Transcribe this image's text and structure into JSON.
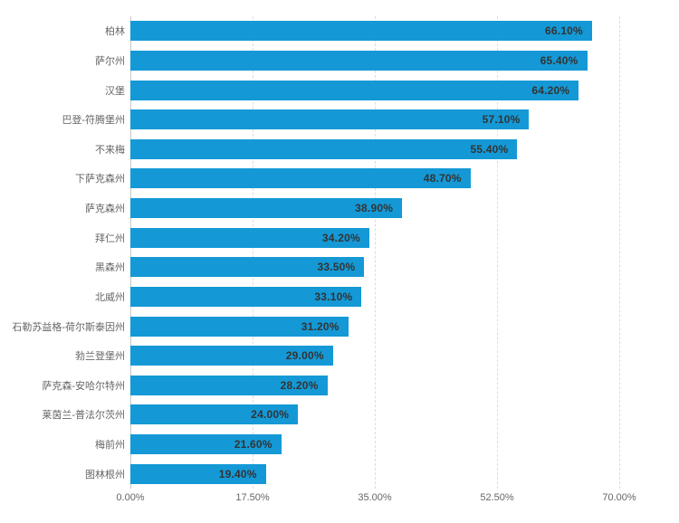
{
  "chart_data": {
    "type": "bar",
    "orientation": "horizontal",
    "title": "",
    "xlabel": "",
    "ylabel": "",
    "legend": null,
    "grid": "vertical-dashed",
    "xlim": [
      0,
      70
    ],
    "x_ticks": [
      "0.00%",
      "17.50%",
      "35.00%",
      "52.50%",
      "70.00%"
    ],
    "categories": [
      "柏林",
      "萨尔州",
      "汉堡",
      "巴登-符腾堡州",
      "不来梅",
      "下萨克森州",
      "萨克森州",
      "拜仁州",
      "黑森州",
      "北威州",
      "石勒苏益格-荷尔斯泰因州",
      "勃兰登堡州",
      "萨克森-安哈尔特州",
      "莱茵兰-普法尔茨州",
      "梅前州",
      "图林根州"
    ],
    "values": [
      66.1,
      65.4,
      64.2,
      57.1,
      55.4,
      48.7,
      38.9,
      34.2,
      33.5,
      33.1,
      31.2,
      29.0,
      28.2,
      24.0,
      21.6,
      19.4
    ],
    "value_labels": [
      "66.10%",
      "65.40%",
      "64.20%",
      "57.10%",
      "55.40%",
      "48.70%",
      "38.90%",
      "34.20%",
      "33.50%",
      "33.10%",
      "31.20%",
      "29.00%",
      "28.20%",
      "24.00%",
      "21.60%",
      "19.40%"
    ],
    "bar_color": "#1499d6",
    "category_label_color": "#666666",
    "value_label_color": "#333333",
    "gridline_color": "#dddddd",
    "axis_line_color": "#c8c8c8",
    "background_color": "#ffffff"
  }
}
